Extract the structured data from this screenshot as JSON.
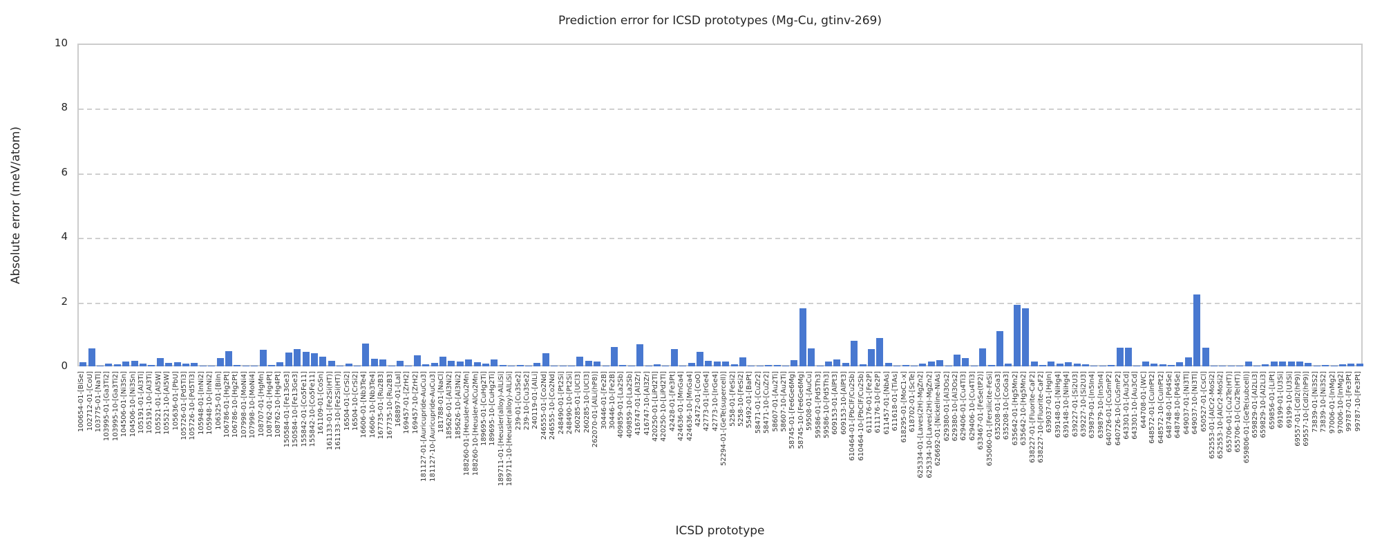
{
  "chart_data": {
    "type": "bar",
    "title": "Prediction error for ICSD prototypes (Mg-Cu, gtinv-269)",
    "xlabel": "ICSD prototype",
    "ylabel": "Absolute error (meV/atom)",
    "ylim": [
      0,
      10
    ],
    "yticks": [
      0,
      2,
      4,
      6,
      8,
      10
    ],
    "gridlines_y": [
      2,
      4,
      6,
      8
    ],
    "grid": "horizontal-dashed",
    "legend": "none",
    "bar_color": "#4878d0",
    "categories": [
      "100654-01-[BiSe]",
      "102712-01-[CoU]",
      "103775-01-[NaTl]",
      "103995-01-[Ga3Ti2]",
      "103995-10-[Ga3Ti2]",
      "104506-01-[Ni3Sn]",
      "104506-10-[Ni3Sn]",
      "105191-01-[Al3Ti]",
      "105191-10-[Al3Ti]",
      "105521-01-[Al5W]",
      "105521-10-[Al5W]",
      "105636-01-[PbU]",
      "105726-01-[Pd5Ti3]",
      "105726-10-[Pd5Ti3]",
      "105948-01-[InNi2]",
      "105948-10-[InNi2]",
      "106325-01-[BiIn]",
      "106786-01-[Hg2Pt]",
      "106786-10-[Hg2Pt]",
      "107998-01-[MoNi4]",
      "107998-10-[MoNi4]",
      "108707-01-[HgMn]",
      "108762-01-[Hg4Pt]",
      "108762-10-[Hg4Pt]",
      "150584-01-[Fe13Ge3]",
      "150584-10-[Fe13Ge3]",
      "155842-01-[Co5Fe11]",
      "155842-10-[Co5Fe11]",
      "161109-01-[CoSn]",
      "161133-01-[Fe2Si(HT)]",
      "161133-10-[Fe2Si(HT)]",
      "16504-01-[CrSi2]",
      "16504-10-[CrSi2]",
      "16606-01-[Nb3Te4]",
      "16606-10-[Nb3Te4]",
      "167735-01-[Ru2B3]",
      "167735-10-[Ru2B3]",
      "168897-01-[LaI]",
      "169457-01-[ZrH2]",
      "169457-10-[ZrH2]",
      "181127-01-[Auricupride-AuCu3]",
      "181127-10-[Auricupride-AuCu3]",
      "181788-01-[NaCl]",
      "185626-01-[Al3Ni2]",
      "185626-10-[Al3Ni2]",
      "188260-01-[Heusler-AlCu2Mn]",
      "188260-10-[Heusler-AlCu2Mn]",
      "189695-01-[CuHg2Ti]",
      "189695-10-[CuHg2Ti]",
      "189711-01-[Heusler(alloy)-AlLiSi]",
      "189711-10-[Heusler(alloy)-AlLiSi]",
      "239-01-[Cu3Se2]",
      "239-10-[Cu3Se2]",
      "240119-01-[AlLi]",
      "246555-01-[Co2Nd]",
      "246555-10-[Co2Nd]",
      "248490-01-[Pt2Si]",
      "248490-10-[Pt2Si]",
      "260285-01-[UCl3]",
      "260285-10-[UCl3]",
      "262070-01-[AlLi(hP8)]",
      "30446-01-[Fe2B]",
      "30446-10-[Fe2B]",
      "409859-01-[La2Sb]",
      "409859-10-[La2Sb]",
      "416747-01-[Al3Zr]",
      "416747-10-[Al3Zr]",
      "420250-01-[LiPd2Tl]",
      "420250-10-[LiPd2Tl]",
      "42428-01-[Fe3Pt]",
      "424636-01-[MnGa4]",
      "424636-10-[MnGa4]",
      "42472-01-[CoO]",
      "42773-01-[IrGe4]",
      "42773-10-[IrGe4]",
      "52294-01-[GeTe(supercell)]",
      "5258-01-[FeSi2]",
      "5258-10-[FeSi2]",
      "55492-01-[BaPt]",
      "58471-01-[CuZr2]",
      "58471-10-[CuZr2]",
      "58607-01-[Au2Ti]",
      "58607-10-[Au2Ti]",
      "58745-01-[Fe6Ge6Mg]",
      "58745-10-[Fe6Ge6Mg]",
      "59508-01-[AuCu]",
      "59586-01-[Pd5Th3]",
      "59586-10-[Pd5Th3]",
      "609153-01-[AlPt3]",
      "609153-10-[AlPt3]",
      "610464-01-[PbClF/Cu2Sb]",
      "610464-10-[PbClF/Cu2Sb]",
      "611176-01-[Fe2P]",
      "611176-10-[Fe2P]",
      "611457-01-[NbAs]",
      "611618-01-[TiAs]",
      "618295-01-[MoC1-x]",
      "618702-01-[ScTe]",
      "625334-01-[Laves(2H)-MgZn2]",
      "625334-10-[Laves(2H)-MgZn2]",
      "626692-01-[Nickeline-NiAs]",
      "629380-01-[Al3Os2]",
      "629380-10-[Al3Os2]",
      "629406-01-[Cu4Ti3]",
      "629406-10-[Cu4Ti3]",
      "633467-01-[FeSe(tP2)]",
      "635060-01-[Fersilicite-FeSi]",
      "635208-01-[CoGa3]",
      "635208-10-[CoGa3]",
      "635642-01-[Hg5Mn2]",
      "635642-10-[Hg5Mn2]",
      "638227-01-[Fluorite-CaF2]",
      "638227-10-[Fluorite-CaF2]",
      "639037-01-[HgIn]",
      "639148-01-[NiHg4]",
      "639148-10-[NiHg4]",
      "639227-01-[Si2U3]",
      "639227-10-[Si2U3]",
      "639879-01-[In5In4]",
      "639879-10-[In5In4]",
      "640726-01-[CuSmP2]",
      "640726-10-[CuSmP2]",
      "643301-01-[Au3Cd]",
      "643301-10-[Au3Cd]",
      "644708-01-[WC]",
      "648572-01-[CuInPt2]",
      "648572-10-[CuInPt2]",
      "648748-01-[Pd4Se]",
      "648748-10-[Pd4Se]",
      "649037-01-[Ni3Tl]",
      "649037-10-[Ni3Tl]",
      "650527-01-[CsCl]",
      "652553-01-[AlCr2-MoSi2]",
      "652553-10-[AlCr2-MoSi2]",
      "655706-01-[Cu2Te(HT)]",
      "655706-10-[Cu2Te(HT)]",
      "659806-01-[GeTe(subcell)]",
      "659829-01-[Al2Li3]",
      "659829-10-[Al2Li3]",
      "659856-01-[LiPt]",
      "69199-01-[U3Si]",
      "69199-10-[U3Si]",
      "69557-01-[CdI2(hP9)]",
      "69557-10-[CdI2(hP9)]",
      "73839-01-[Ni3S2]",
      "73839-10-[Ni3S2]",
      "97006-01-[InMg2]",
      "97006-10-[InMg2]",
      "99787-01-[Fe3Pt]",
      "99787-10-[Fe3Pt]"
    ],
    "values": [
      0.13,
      0.55,
      0.02,
      0.09,
      0.07,
      0.15,
      0.17,
      0.08,
      0.04,
      0.26,
      0.1,
      0.12,
      0.09,
      0.1,
      0.01,
      0.01,
      0.25,
      0.47,
      0.05,
      0.01,
      0.02,
      0.51,
      0.05,
      0.13,
      0.43,
      0.53,
      0.46,
      0.4,
      0.29,
      0.18,
      0.01,
      0.09,
      0.01,
      0.71,
      0.24,
      0.21,
      0.03,
      0.17,
      0.02,
      0.34,
      0.07,
      0.1,
      0.31,
      0.17,
      0.15,
      0.22,
      0.12,
      0.09,
      0.21,
      0.05,
      0.02,
      0.04,
      0.01,
      0.1,
      0.4,
      0.02,
      0.01,
      0.02,
      0.29,
      0.18,
      0.15,
      0.01,
      0.6,
      0.04,
      0.02,
      0.68,
      0.02,
      0.07,
      0.03,
      0.53,
      0.03,
      0.11,
      0.44,
      0.18,
      0.15,
      0.15,
      0.07,
      0.27,
      0.02,
      0.02,
      0.05,
      0.04,
      0.03,
      0.2,
      1.8,
      0.55,
      0.03,
      0.16,
      0.21,
      0.1,
      0.8,
      0.07,
      0.54,
      0.88,
      0.11,
      0.01,
      0.05,
      0.01,
      0.08,
      0.15,
      0.2,
      0.02,
      0.36,
      0.26,
      0.02,
      0.56,
      0.05,
      1.1,
      0.09,
      1.9,
      1.8,
      0.15,
      0.04,
      0.16,
      0.09,
      0.12,
      0.09,
      0.06,
      0.02,
      0.03,
      0.05,
      0.58,
      0.57,
      0.02,
      0.16,
      0.08,
      0.06,
      0.05,
      0.13,
      0.27,
      2.22,
      0.57,
      0.01,
      0.01,
      0.03,
      0.01,
      0.16,
      0.01,
      0.06,
      0.14,
      0.16,
      0.14,
      0.14,
      0.11,
      0.01,
      0.04,
      0.02,
      0.07,
      0.08,
      0.08
    ]
  }
}
